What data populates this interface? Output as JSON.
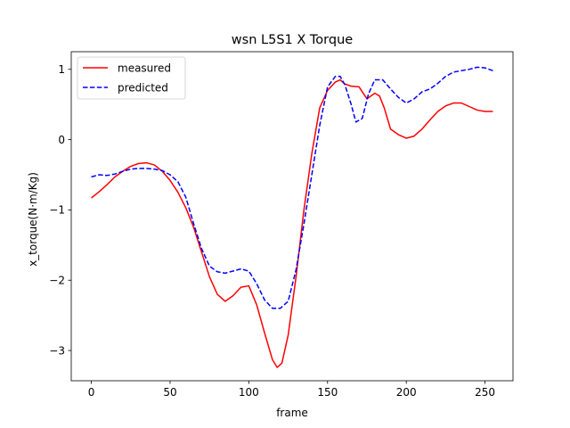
{
  "chart_data": {
    "type": "line",
    "title": "wsn L5S1 X Torque",
    "xlabel": "frame",
    "ylabel": "x_torque(N·m/Kg)",
    "xlim": [
      -12.75,
      267.75
    ],
    "ylim": [
      -3.43,
      1.25
    ],
    "xticks": [
      0,
      50,
      100,
      150,
      200,
      250
    ],
    "yticks": [
      -3,
      -2,
      -1,
      0,
      1
    ],
    "grid": false,
    "legend": "top-left",
    "series": [
      {
        "name": "measured",
        "color": "#ff0000",
        "style": "solid",
        "x": [
          0,
          5,
          10,
          15,
          20,
          25,
          30,
          35,
          40,
          45,
          50,
          55,
          60,
          65,
          70,
          75,
          80,
          85,
          90,
          95,
          100,
          105,
          110,
          115,
          118,
          121,
          125,
          130,
          135,
          140,
          145,
          150,
          155,
          158,
          161,
          165,
          170,
          175,
          180,
          183,
          186,
          190,
          195,
          200,
          205,
          210,
          215,
          220,
          225,
          230,
          235,
          240,
          245,
          250,
          255
        ],
        "y": [
          -0.83,
          -0.74,
          -0.64,
          -0.53,
          -0.45,
          -0.38,
          -0.34,
          -0.33,
          -0.36,
          -0.45,
          -0.58,
          -0.75,
          -0.97,
          -1.25,
          -1.6,
          -1.95,
          -2.2,
          -2.3,
          -2.22,
          -2.1,
          -2.08,
          -2.35,
          -2.75,
          -3.13,
          -3.24,
          -3.18,
          -2.78,
          -1.95,
          -1.0,
          -0.2,
          0.45,
          0.7,
          0.82,
          0.85,
          0.79,
          0.76,
          0.75,
          0.58,
          0.66,
          0.62,
          0.45,
          0.15,
          0.07,
          0.02,
          0.05,
          0.15,
          0.28,
          0.4,
          0.48,
          0.52,
          0.52,
          0.47,
          0.42,
          0.4,
          0.4
        ]
      },
      {
        "name": "predicted",
        "color": "#0000ff",
        "style": "dashed",
        "x": [
          0,
          5,
          10,
          15,
          20,
          25,
          30,
          35,
          40,
          45,
          50,
          55,
          60,
          65,
          70,
          75,
          80,
          85,
          90,
          95,
          100,
          105,
          110,
          115,
          120,
          125,
          130,
          135,
          140,
          145,
          150,
          155,
          158,
          161,
          165,
          168,
          172,
          176,
          180,
          185,
          190,
          195,
          200,
          205,
          210,
          215,
          220,
          225,
          230,
          235,
          240,
          245,
          250,
          255
        ],
        "y": [
          -0.53,
          -0.5,
          -0.51,
          -0.49,
          -0.45,
          -0.42,
          -0.41,
          -0.41,
          -0.42,
          -0.44,
          -0.5,
          -0.6,
          -0.82,
          -1.2,
          -1.55,
          -1.8,
          -1.88,
          -1.9,
          -1.87,
          -1.84,
          -1.87,
          -2.05,
          -2.28,
          -2.4,
          -2.4,
          -2.3,
          -1.85,
          -1.2,
          -0.5,
          0.2,
          0.75,
          0.9,
          0.9,
          0.78,
          0.5,
          0.25,
          0.3,
          0.65,
          0.85,
          0.85,
          0.72,
          0.6,
          0.52,
          0.58,
          0.68,
          0.72,
          0.8,
          0.9,
          0.96,
          0.98,
          1.0,
          1.03,
          1.02,
          0.98
        ]
      }
    ]
  }
}
